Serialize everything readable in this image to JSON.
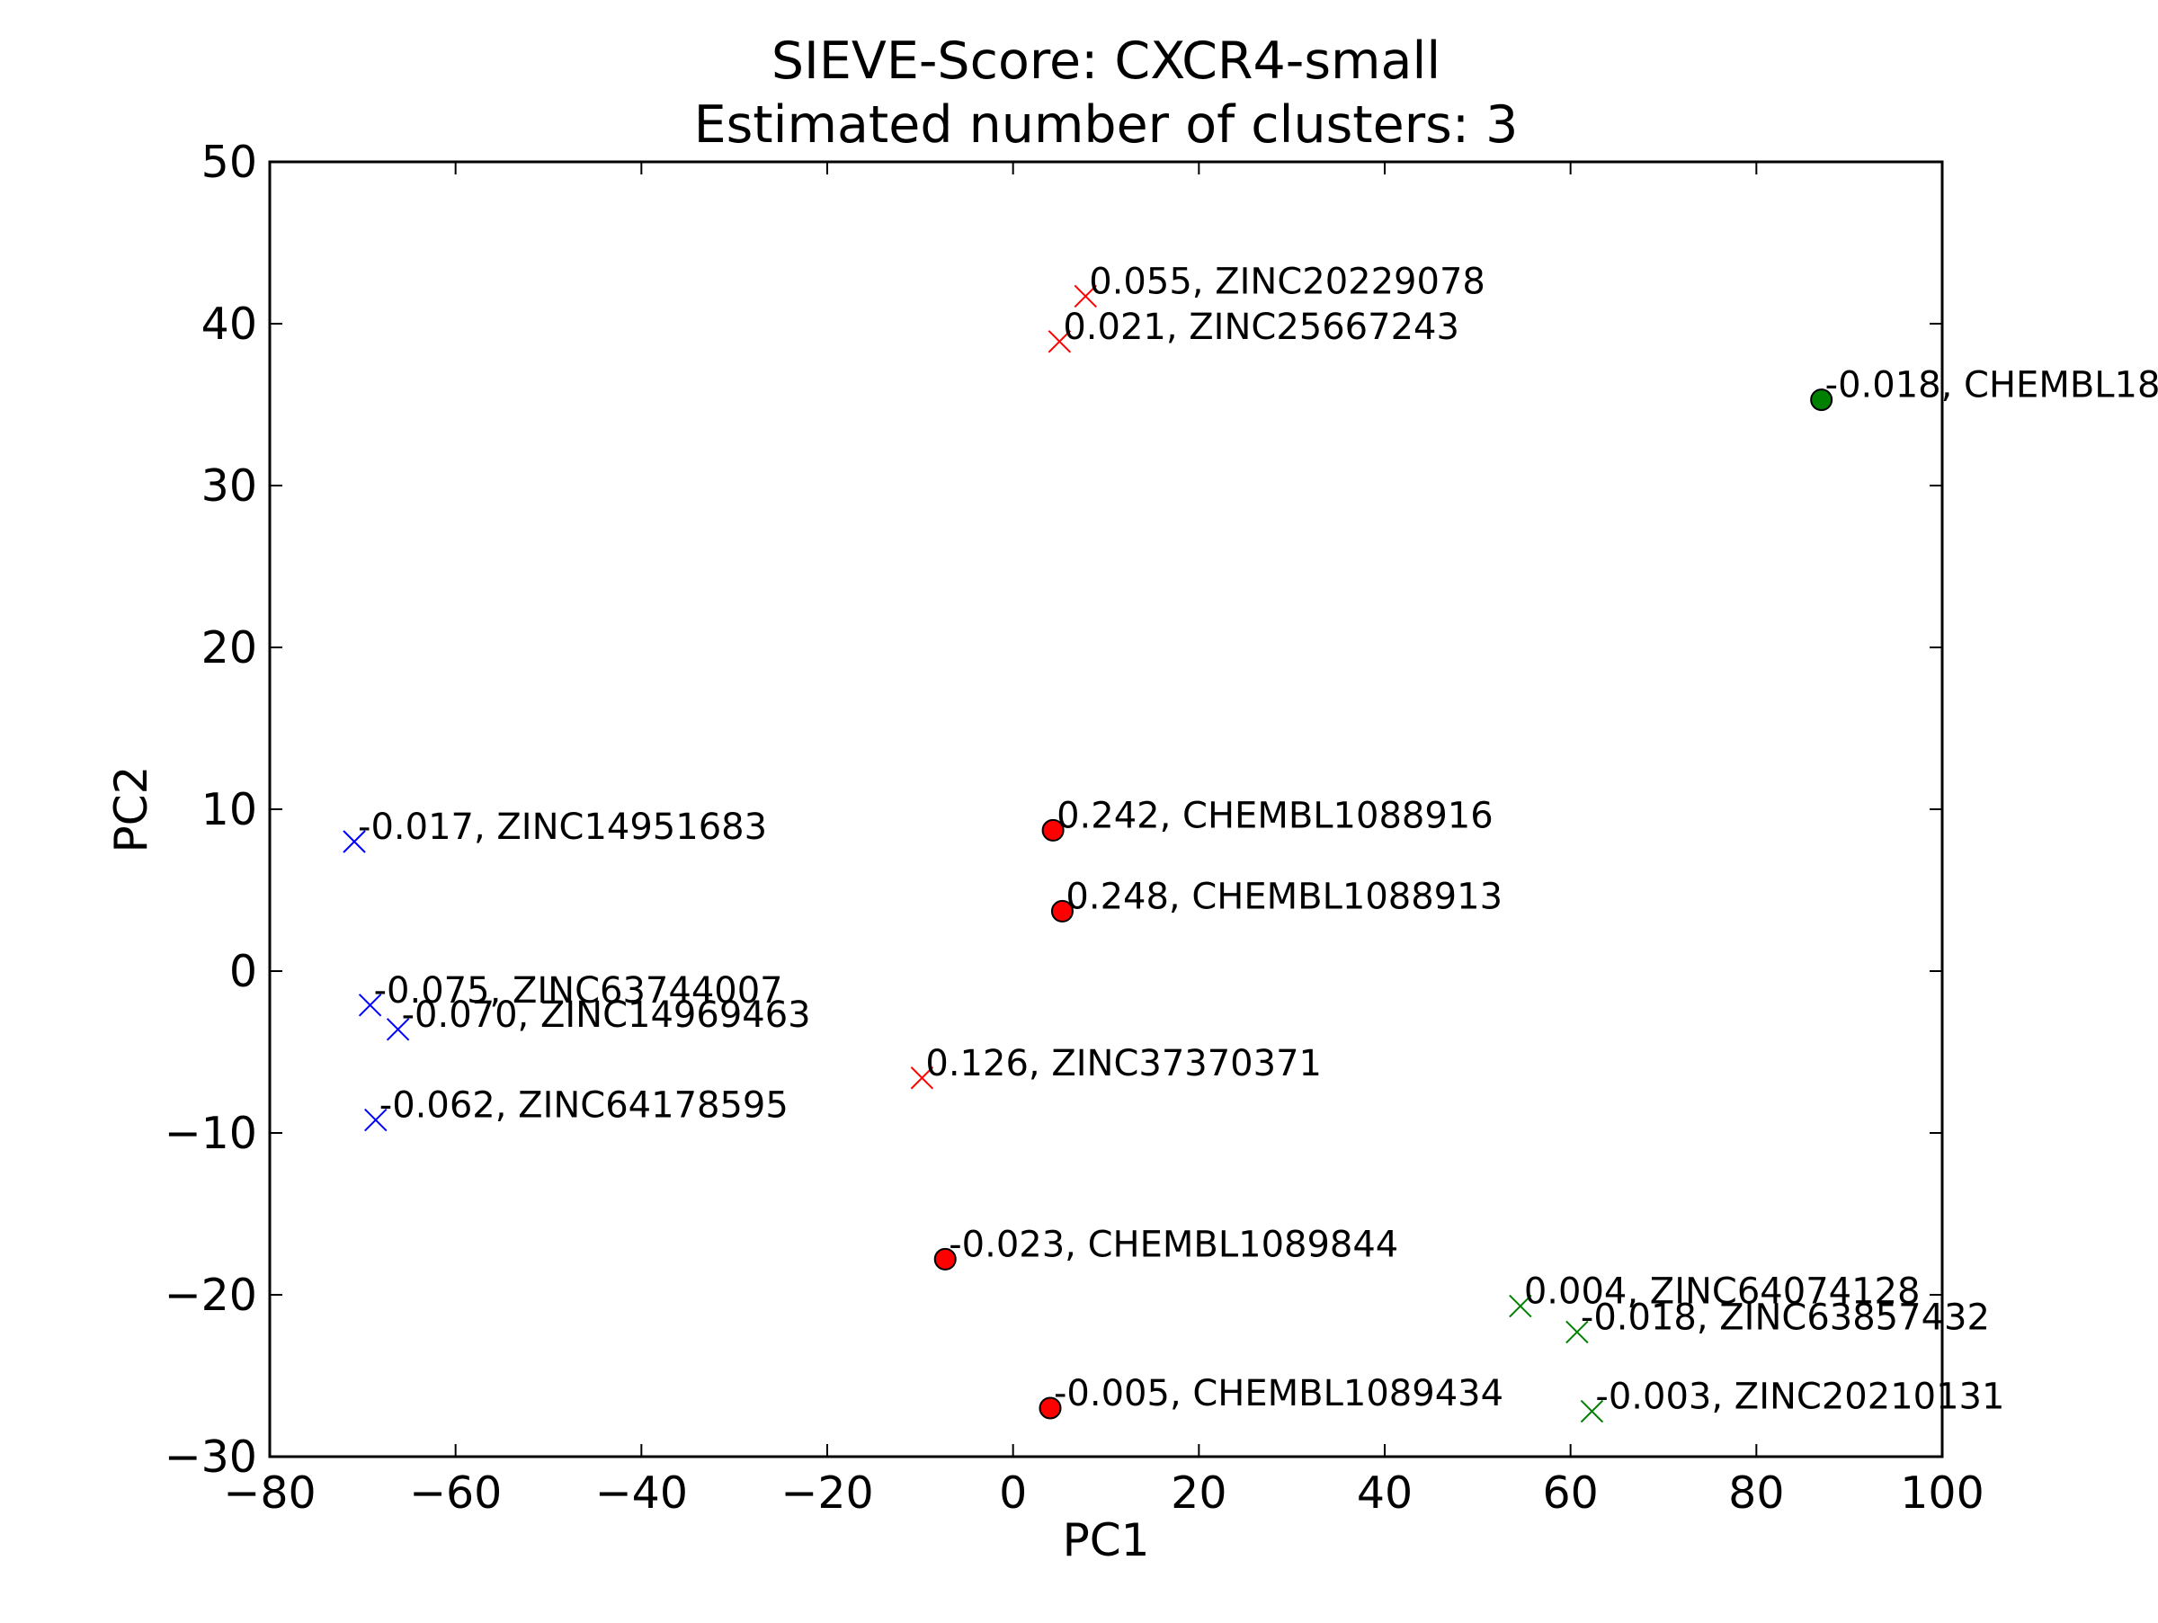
{
  "chart_data": {
    "type": "scatter",
    "title": "SIEVE-Score: CXCR4-small",
    "subtitle": "Estimated number of clusters: 3",
    "xlabel": "PC1",
    "ylabel": "PC2",
    "xlim": [
      -80,
      100
    ],
    "ylim": [
      -30,
      50
    ],
    "xticks": [
      -80,
      -60,
      -40,
      -20,
      0,
      20,
      40,
      60,
      80,
      100
    ],
    "yticks": [
      -30,
      -20,
      -10,
      0,
      10,
      20,
      30,
      40,
      50
    ],
    "xtick_labels": [
      "−80",
      "−60",
      "−40",
      "−20",
      "0",
      "20",
      "40",
      "60",
      "80",
      "100"
    ],
    "ytick_labels": [
      "−30",
      "−20",
      "−10",
      "0",
      "10",
      "20",
      "30",
      "40",
      "50"
    ],
    "grid": false,
    "legend": false,
    "colors": {
      "red": "#ff0000",
      "blue": "#0000ff",
      "green": "#008000"
    },
    "points": [
      {
        "x": 7.8,
        "y": 41.7,
        "marker": "x",
        "color": "red",
        "label": "0.055, ZINC20229078"
      },
      {
        "x": 5.0,
        "y": 38.9,
        "marker": "x",
        "color": "red",
        "label": "0.021, ZINC25667243"
      },
      {
        "x": 87.0,
        "y": 35.3,
        "marker": "circle",
        "color": "green",
        "label": "-0.018, CHEMBL18"
      },
      {
        "x": 4.3,
        "y": 8.7,
        "marker": "circle",
        "color": "red",
        "label": "0.242, CHEMBL1088916"
      },
      {
        "x": 5.3,
        "y": 3.7,
        "marker": "circle",
        "color": "red",
        "label": "0.248, CHEMBL1088913"
      },
      {
        "x": -70.9,
        "y": 8.0,
        "marker": "x",
        "color": "blue",
        "label": "-0.017, ZINC14951683"
      },
      {
        "x": -69.2,
        "y": -2.1,
        "marker": "x",
        "color": "blue",
        "label": "-0.075, ZINC63744007"
      },
      {
        "x": -66.2,
        "y": -3.6,
        "marker": "x",
        "color": "blue",
        "label": "-0.070, ZINC14969463"
      },
      {
        "x": -9.8,
        "y": -6.6,
        "marker": "x",
        "color": "red",
        "label": "0.126, ZINC37370371"
      },
      {
        "x": -68.6,
        "y": -9.2,
        "marker": "x",
        "color": "blue",
        "label": "-0.062, ZINC64178595"
      },
      {
        "x": -7.3,
        "y": -17.8,
        "marker": "circle",
        "color": "red",
        "label": "-0.023, CHEMBL1089844"
      },
      {
        "x": 54.6,
        "y": -20.7,
        "marker": "x",
        "color": "green",
        "label": "0.004, ZINC64074128"
      },
      {
        "x": 60.7,
        "y": -22.3,
        "marker": "x",
        "color": "green",
        "label": "-0.018, ZINC63857432"
      },
      {
        "x": 4.0,
        "y": -27.0,
        "marker": "circle",
        "color": "red",
        "label": "-0.005, CHEMBL1089434"
      },
      {
        "x": 62.3,
        "y": -27.2,
        "marker": "x",
        "color": "green",
        "label": "-0.003, ZINC20210131"
      }
    ]
  }
}
